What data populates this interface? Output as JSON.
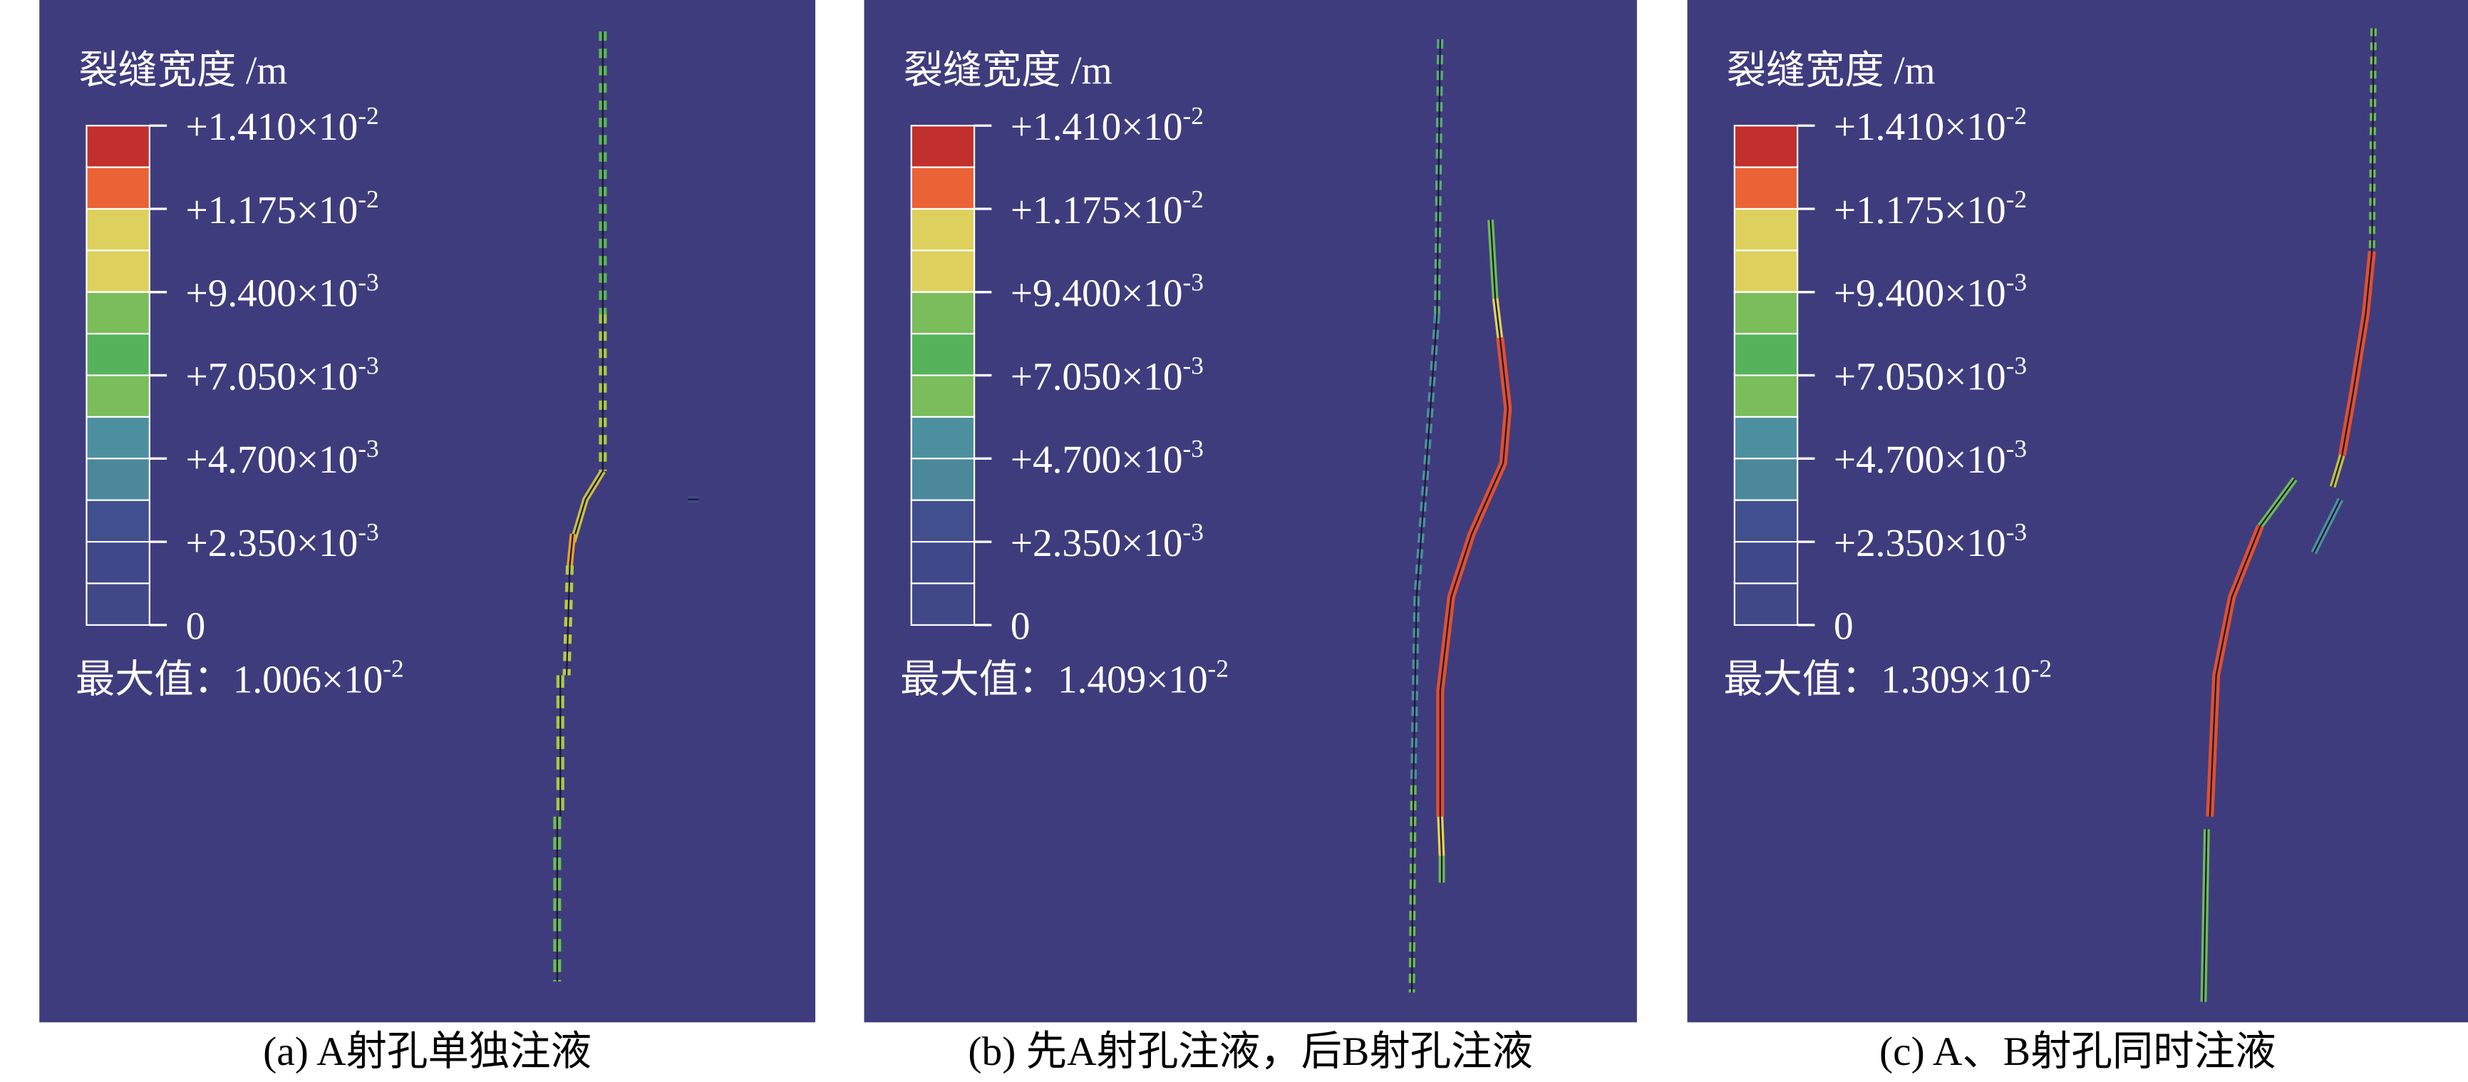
{
  "legend_colors": [
    "#c1302c",
    "#ea6236",
    "#ddd05c",
    "#ddd05c",
    "#7bbd5a",
    "#56b35b",
    "#7bbd5a",
    "#4c90a0",
    "#4a889a",
    "#414f8e",
    "#3f4888",
    "#414888"
  ],
  "panels": [
    {
      "legend_title": "裂缝宽度 /m",
      "legend_ticks": [
        {
          "text": "+1.410×10",
          "sup": "-2"
        },
        {
          "text": "+1.175×10",
          "sup": "-2"
        },
        {
          "text": "+9.400×10",
          "sup": "-3"
        },
        {
          "text": "+7.050×10",
          "sup": "-3"
        },
        {
          "text": "+4.700×10",
          "sup": "-3"
        },
        {
          "text": "+2.350×10",
          "sup": "-3"
        },
        {
          "text": "0"
        }
      ],
      "max_label": "最大值：",
      "max_value": {
        "text": "1.006×10",
        "sup": "-2"
      },
      "caption": "(a) A射孔单独注液"
    },
    {
      "legend_title": "裂缝宽度 /m",
      "legend_ticks": [
        {
          "text": "+1.410×10",
          "sup": "-2"
        },
        {
          "text": "+1.175×10",
          "sup": "-2"
        },
        {
          "text": "+9.400×10",
          "sup": "-3"
        },
        {
          "text": "+7.050×10",
          "sup": "-3"
        },
        {
          "text": "+4.700×10",
          "sup": "-3"
        },
        {
          "text": "+2.350×10",
          "sup": "-3"
        },
        {
          "text": "0"
        }
      ],
      "max_label": "最大值：",
      "max_value": {
        "text": "1.409×10",
        "sup": "-2"
      },
      "caption": "(b) 先A射孔注液，后B射孔注液"
    },
    {
      "legend_title": "裂缝宽度 /m",
      "legend_ticks": [
        {
          "text": "+1.410×10",
          "sup": "-2"
        },
        {
          "text": "+1.175×10",
          "sup": "-2"
        },
        {
          "text": "+9.400×10",
          "sup": "-3"
        },
        {
          "text": "+7.050×10",
          "sup": "-3"
        },
        {
          "text": "+4.700×10",
          "sup": "-3"
        },
        {
          "text": "+2.350×10",
          "sup": "-3"
        },
        {
          "text": "0"
        }
      ],
      "max_label": "最大值：",
      "max_value": {
        "text": "1.309×10",
        "sup": "-2"
      },
      "caption": "(c) A、B射孔同时注液"
    }
  ]
}
